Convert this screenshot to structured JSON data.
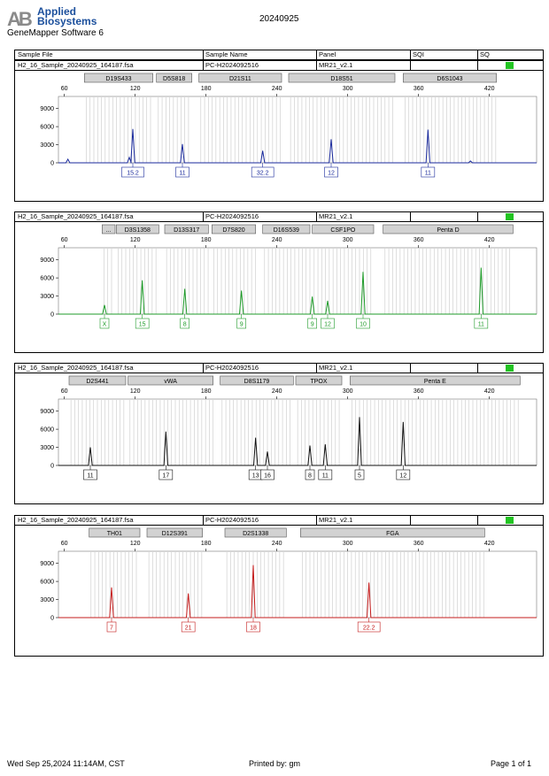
{
  "header": {
    "logo_line1": "Applied",
    "logo_line2": "Biosystems",
    "logo_mark": "AB",
    "software": "GeneMapper Software 6",
    "date": "20240925",
    "col_sample_file": "Sample File",
    "col_sample_name": "Sample Name",
    "col_panel": "Panel",
    "col_sqi": "SQI",
    "col_sq": "SQ"
  },
  "footer": {
    "printed_time": "Wed Sep 25,2024 11:14AM, CST",
    "printed_by": "Printed by: gm",
    "page": "Page 1 of 1"
  },
  "chart_data": [
    {
      "type": "line",
      "sample_file": "H2_16_Sample_20240925_164187.fsa",
      "sample_name": "PC-H2024092516",
      "panel": "MR21_v2.1",
      "color": "#1a2a9c",
      "x_ticks": [
        60,
        120,
        180,
        240,
        300,
        360,
        420
      ],
      "y_ticks": [
        0,
        3000,
        6000,
        9000
      ],
      "xlim": [
        55,
        460
      ],
      "ylim": [
        0,
        11000
      ],
      "markers": [
        {
          "name": "D19S433",
          "from": 77,
          "to": 135
        },
        {
          "name": "D5S818",
          "from": 138,
          "to": 168
        },
        {
          "name": "D21S11",
          "from": 174,
          "to": 244
        },
        {
          "name": "D18S51",
          "from": 250,
          "to": 340
        },
        {
          "name": "D6S1043",
          "from": 347,
          "to": 426
        }
      ],
      "peaks": [
        {
          "x": 63,
          "h": 600,
          "label": ""
        },
        {
          "x": 115,
          "h": 900,
          "label": ""
        },
        {
          "x": 118,
          "h": 5600,
          "label": "15.2"
        },
        {
          "x": 160,
          "h": 3100,
          "label": "11"
        },
        {
          "x": 228,
          "h": 2000,
          "label": "32.2"
        },
        {
          "x": 286,
          "h": 3900,
          "label": "12"
        },
        {
          "x": 368,
          "h": 5500,
          "label": "11"
        },
        {
          "x": 404,
          "h": 300,
          "label": ""
        }
      ],
      "allele_labels": [
        "15.2",
        "11",
        "32.2",
        "12",
        "11"
      ]
    },
    {
      "type": "line",
      "sample_file": "H2_16_Sample_20240925_164187.fsa",
      "sample_name": "PC-H2024092516",
      "panel": "MR21_v2.1",
      "color": "#1f9b2a",
      "x_ticks": [
        60,
        120,
        180,
        240,
        300,
        360,
        420
      ],
      "y_ticks": [
        0,
        3000,
        6000,
        9000
      ],
      "xlim": [
        55,
        460
      ],
      "ylim": [
        0,
        11000
      ],
      "markers": [
        {
          "name": "...",
          "from": 92,
          "to": 103
        },
        {
          "name": "D3S1358",
          "from": 104,
          "to": 140
        },
        {
          "name": "D13S317",
          "from": 145,
          "to": 182
        },
        {
          "name": "D7S820",
          "from": 185,
          "to": 222
        },
        {
          "name": "D16S539",
          "from": 228,
          "to": 268
        },
        {
          "name": "CSF1PO",
          "from": 270,
          "to": 322
        },
        {
          "name": "Penta D",
          "from": 330,
          "to": 440
        }
      ],
      "peaks": [
        {
          "x": 94,
          "h": 1500,
          "label": "X"
        },
        {
          "x": 126,
          "h": 5600,
          "label": "15"
        },
        {
          "x": 162,
          "h": 4200,
          "label": "8"
        },
        {
          "x": 210,
          "h": 3900,
          "label": "9"
        },
        {
          "x": 270,
          "h": 2900,
          "label": "9"
        },
        {
          "x": 283,
          "h": 2200,
          "label": "12"
        },
        {
          "x": 313,
          "h": 7000,
          "label": "10"
        },
        {
          "x": 413,
          "h": 7700,
          "label": "11"
        }
      ],
      "allele_labels": [
        "X",
        "15",
        "8",
        "9",
        "9",
        "12",
        "10",
        "11"
      ]
    },
    {
      "type": "line",
      "sample_file": "H2_16_Sample_20240925_164187.fsa",
      "sample_name": "PC-H2024092516",
      "panel": "MR21_v2.1",
      "color": "#111111",
      "x_ticks": [
        60,
        120,
        180,
        240,
        300,
        360,
        420
      ],
      "y_ticks": [
        0,
        3000,
        6000,
        9000
      ],
      "xlim": [
        55,
        460
      ],
      "ylim": [
        0,
        11000
      ],
      "markers": [
        {
          "name": "D2S441",
          "from": 64,
          "to": 112
        },
        {
          "name": "vWA",
          "from": 114,
          "to": 186
        },
        {
          "name": "D8S1179",
          "from": 192,
          "to": 254
        },
        {
          "name": "TPOX",
          "from": 256,
          "to": 295
        },
        {
          "name": "Penta E",
          "from": 302,
          "to": 446
        }
      ],
      "peaks": [
        {
          "x": 82,
          "h": 3000,
          "label": "11"
        },
        {
          "x": 146,
          "h": 5600,
          "label": "17"
        },
        {
          "x": 222,
          "h": 4600,
          "label": "13"
        },
        {
          "x": 232,
          "h": 2300,
          "label": "16"
        },
        {
          "x": 268,
          "h": 3300,
          "label": "8"
        },
        {
          "x": 281,
          "h": 3500,
          "label": "11"
        },
        {
          "x": 310,
          "h": 8000,
          "label": "5"
        },
        {
          "x": 347,
          "h": 7200,
          "label": "12"
        }
      ],
      "allele_labels": [
        "11",
        "17",
        "13",
        "16",
        "8",
        "11",
        "5",
        "12"
      ]
    },
    {
      "type": "line",
      "sample_file": "H2_16_Sample_20240925_164187.fsa",
      "sample_name": "PC-H2024092516",
      "panel": "MR21_v2.1",
      "color": "#c41c1c",
      "x_ticks": [
        60,
        120,
        180,
        240,
        300,
        360,
        420
      ],
      "y_ticks": [
        0,
        3000,
        6000,
        9000
      ],
      "xlim": [
        55,
        460
      ],
      "ylim": [
        0,
        11000
      ],
      "markers": [
        {
          "name": "TH01",
          "from": 81,
          "to": 124
        },
        {
          "name": "D12S391",
          "from": 130,
          "to": 177
        },
        {
          "name": "D2S1338",
          "from": 196,
          "to": 248
        },
        {
          "name": "FGA",
          "from": 260,
          "to": 416
        }
      ],
      "peaks": [
        {
          "x": 100,
          "h": 5000,
          "label": "7"
        },
        {
          "x": 165,
          "h": 4000,
          "label": "21"
        },
        {
          "x": 220,
          "h": 8700,
          "label": "18"
        },
        {
          "x": 318,
          "h": 5800,
          "label": "22.2"
        }
      ],
      "allele_labels": [
        "7",
        "21",
        "18",
        "22.2"
      ]
    }
  ]
}
